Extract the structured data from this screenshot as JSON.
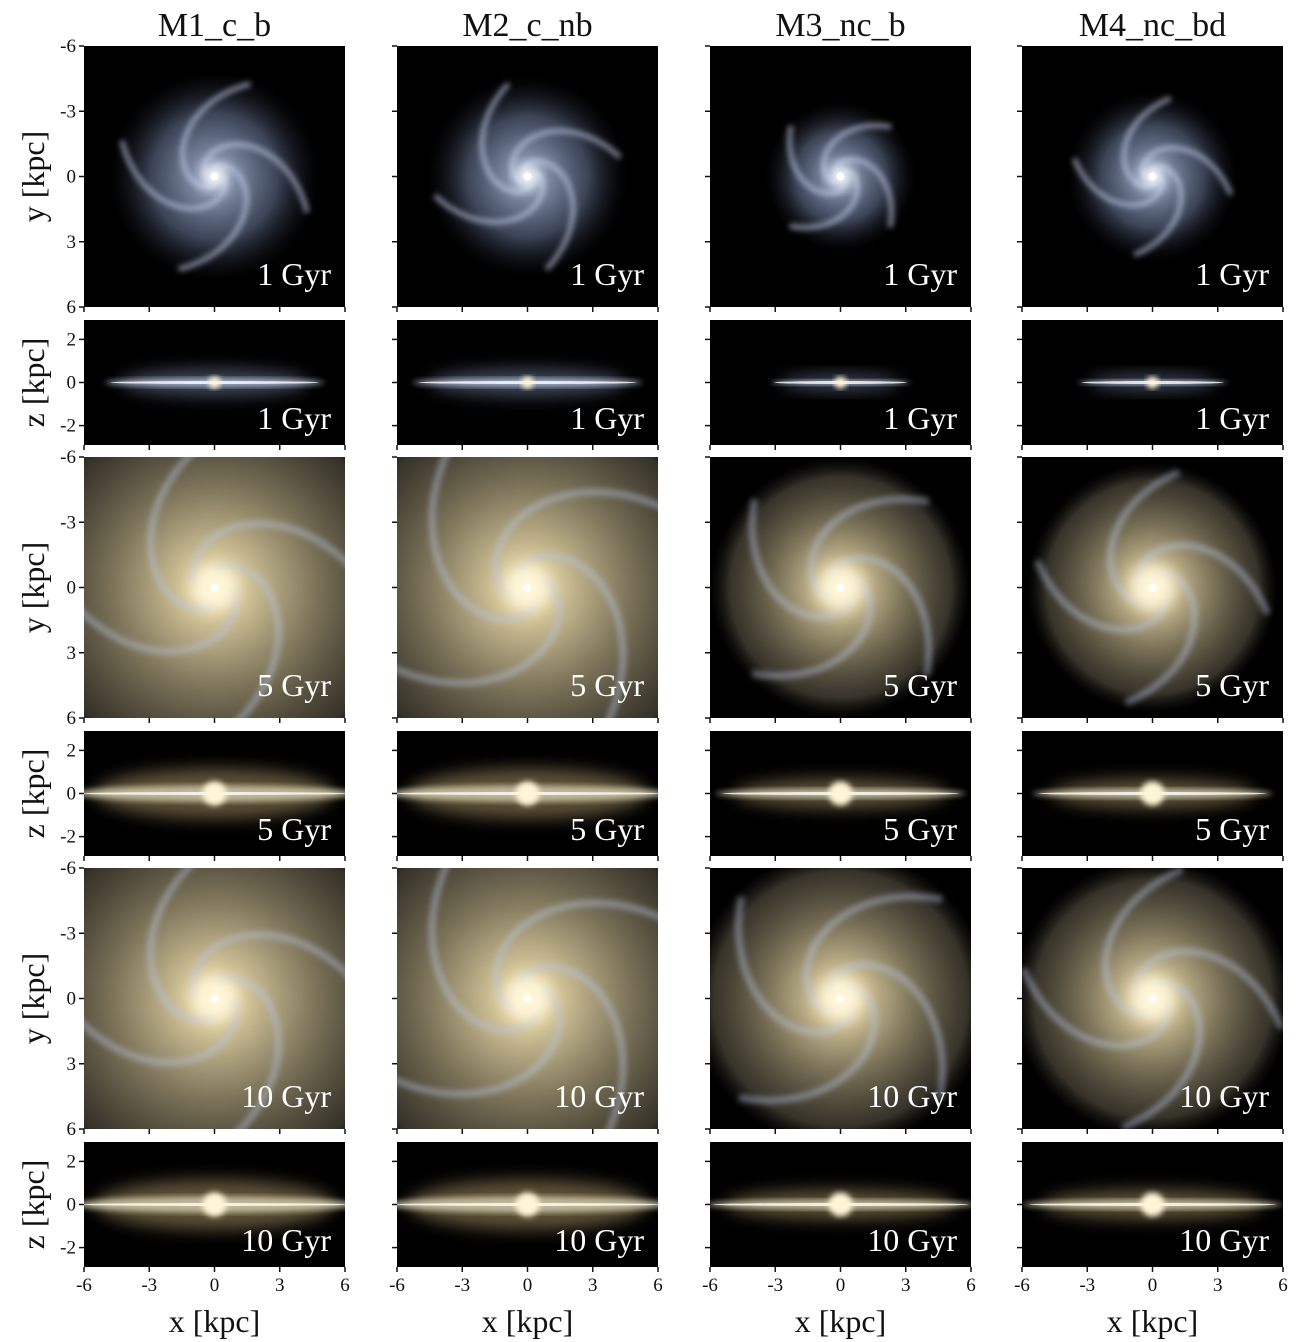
{
  "columns": [
    "M1_c_b",
    "M2_c_nb",
    "M3_nc_b",
    "M4_nc_bd"
  ],
  "times": [
    "1 Gyr",
    "5 Gyr",
    "10 Gyr"
  ],
  "face_on": {
    "ylabel": "y [kpc]",
    "ylim": [
      6,
      -6
    ],
    "yticks": [
      -6,
      -3,
      0,
      3,
      6
    ]
  },
  "edge_on": {
    "ylabel": "z [kpc]",
    "ylim": [
      -2.9,
      2.9
    ],
    "yticks": [
      -2,
      0,
      2
    ]
  },
  "x_axis": {
    "xlabel": "x [kpc]",
    "xlim": [
      -6,
      6
    ],
    "xticks": [
      -6,
      -3,
      0,
      3,
      6
    ]
  }
}
